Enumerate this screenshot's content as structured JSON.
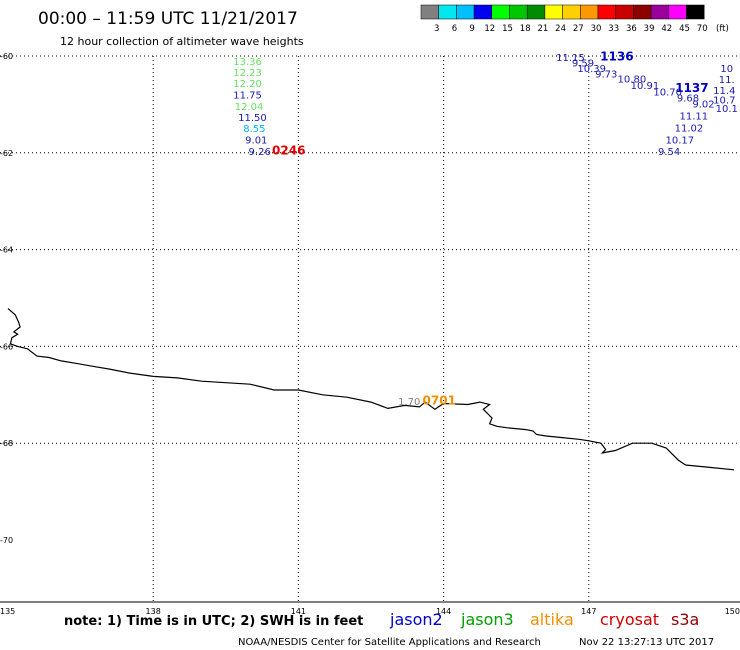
{
  "header": {
    "title": "00:00 – 11:59 UTC 11/21/2017",
    "subtitle": "12 hour collection of altimeter wave heights"
  },
  "scale": {
    "colors": [
      "#808080",
      "#00e8f0",
      "#00c0ff",
      "#0000f0",
      "#00ff00",
      "#00c800",
      "#008c00",
      "#ffff00",
      "#ffd000",
      "#ff9800",
      "#ff0000",
      "#c80000",
      "#8c0000",
      "#9c009c",
      "#ff00ff",
      "#000000"
    ],
    "labels": [
      "3",
      "6",
      "9",
      "12",
      "15",
      "18",
      "21",
      "24",
      "27",
      "30",
      "33",
      "36",
      "39",
      "42",
      "45",
      "70"
    ],
    "unit": "(ft)"
  },
  "axes": {
    "y_ticks": [
      {
        "value": -60,
        "label": "-60"
      },
      {
        "value": -62,
        "label": "-62"
      },
      {
        "value": -64,
        "label": "-64"
      },
      {
        "value": -66,
        "label": "-66"
      },
      {
        "value": -68,
        "label": "-68"
      },
      {
        "value": -70,
        "label": "-70"
      }
    ],
    "x_ticks": [
      {
        "value": 135,
        "label": "135"
      },
      {
        "value": 138,
        "label": "138"
      },
      {
        "value": 141,
        "label": "141"
      },
      {
        "value": 144,
        "label": "144"
      },
      {
        "value": 147,
        "label": "147"
      },
      {
        "value": 150,
        "label": "150"
      }
    ],
    "lat_range": [
      -70,
      -60
    ],
    "lon_range": [
      135,
      150
    ],
    "grid": true
  },
  "measurements": [
    {
      "lon": 139.95,
      "lat": -60.12,
      "value": "13.36",
      "color": "#66e066"
    },
    {
      "lon": 139.95,
      "lat": -60.35,
      "value": "12.23",
      "color": "#66e066"
    },
    {
      "lon": 139.95,
      "lat": -60.58,
      "value": "12.20",
      "color": "#66e066"
    },
    {
      "lon": 139.95,
      "lat": -60.82,
      "value": "11.75",
      "color": "#1a1ab0"
    },
    {
      "lon": 139.98,
      "lat": -61.05,
      "value": "12.04",
      "color": "#66e066"
    },
    {
      "lon": 140.05,
      "lat": -61.28,
      "value": "11.50",
      "color": "#1a1ab0"
    },
    {
      "lon": 140.09,
      "lat": -61.51,
      "value": "8.55",
      "color": "#00b0f0"
    },
    {
      "lon": 140.13,
      "lat": -61.75,
      "value": "9.01",
      "color": "#1a1ab0"
    },
    {
      "lon": 140.2,
      "lat": -61.98,
      "value": "9.26",
      "color": "#1a1ab0"
    },
    {
      "lon": 143.29,
      "lat": -67.15,
      "value": "1.70",
      "color": "#808080"
    },
    {
      "lon": 146.62,
      "lat": -60.04,
      "value": "11.15",
      "color": "#1a1ab0"
    },
    {
      "lon": 146.88,
      "lat": -60.15,
      "value": "9.59",
      "color": "#1a1ab0"
    },
    {
      "lon": 147.06,
      "lat": -60.27,
      "value": "10.39",
      "color": "#1a1ab0"
    },
    {
      "lon": 147.36,
      "lat": -60.38,
      "value": "9.73",
      "color": "#1a1ab0"
    },
    {
      "lon": 147.89,
      "lat": -60.49,
      "value": "10.80",
      "color": "#1a1ab0"
    },
    {
      "lon": 148.16,
      "lat": -60.62,
      "value": "10.91",
      "color": "#1a1ab0"
    },
    {
      "lon": 148.63,
      "lat": -60.75,
      "value": "10.70",
      "color": "#1a1ab0"
    },
    {
      "lon": 149.05,
      "lat": -60.88,
      "value": "9.68",
      "color": "#1a1ab0"
    },
    {
      "lon": 149.37,
      "lat": -61.0,
      "value": "9.02",
      "color": "#1a1ab0"
    },
    {
      "lon": 149.17,
      "lat": -61.25,
      "value": "11.11",
      "color": "#1a1ab0"
    },
    {
      "lon": 149.07,
      "lat": -61.5,
      "value": "11.02",
      "color": "#1a1ab0"
    },
    {
      "lon": 148.88,
      "lat": -61.75,
      "value": "10.17",
      "color": "#1a1ab0"
    },
    {
      "lon": 148.66,
      "lat": -61.98,
      "value": "9.54",
      "color": "#1a1ab0"
    },
    {
      "lon": 149.85,
      "lat": -60.27,
      "value": "10",
      "color": "#1a1ab0"
    },
    {
      "lon": 149.85,
      "lat": -60.5,
      "value": "11.",
      "color": "#1a1ab0"
    },
    {
      "lon": 149.8,
      "lat": -60.72,
      "value": "11.4",
      "color": "#1a1ab0"
    },
    {
      "lon": 149.8,
      "lat": -60.92,
      "value": "10.7",
      "color": "#1a1ab0"
    },
    {
      "lon": 149.85,
      "lat": -61.1,
      "value": "10.1",
      "color": "#1a1ab0"
    }
  ],
  "pass_times": [
    {
      "lon": 140.8,
      "lat": -61.95,
      "label": "0246",
      "color": "#e00000"
    },
    {
      "lon": 143.91,
      "lat": -67.12,
      "label": "0701",
      "color": "#f09000"
    },
    {
      "lon": 147.58,
      "lat": -60.01,
      "label": "1136",
      "color": "#0000c0"
    },
    {
      "lon": 149.13,
      "lat": -60.66,
      "label": "1137",
      "color": "#0000c0"
    }
  ],
  "coastline": [
    [
      135.0,
      -65.22
    ],
    [
      135.15,
      -65.35
    ],
    [
      135.22,
      -65.5
    ],
    [
      135.25,
      -65.6
    ],
    [
      135.12,
      -65.7
    ],
    [
      135.2,
      -65.75
    ],
    [
      135.08,
      -65.82
    ],
    [
      135.05,
      -65.95
    ],
    [
      135.2,
      -66.0
    ],
    [
      135.4,
      -66.05
    ],
    [
      135.6,
      -66.2
    ],
    [
      135.85,
      -66.23
    ],
    [
      136.1,
      -66.3
    ],
    [
      136.4,
      -66.35
    ],
    [
      136.8,
      -66.42
    ],
    [
      137.1,
      -66.47
    ],
    [
      137.5,
      -66.55
    ],
    [
      138.0,
      -66.62
    ],
    [
      138.5,
      -66.65
    ],
    [
      139.0,
      -66.72
    ],
    [
      139.5,
      -66.75
    ],
    [
      140.0,
      -66.78
    ],
    [
      140.5,
      -66.9
    ],
    [
      141.0,
      -66.9
    ],
    [
      141.5,
      -67.0
    ],
    [
      142.0,
      -67.05
    ],
    [
      142.5,
      -67.15
    ],
    [
      142.85,
      -67.28
    ],
    [
      143.2,
      -67.22
    ],
    [
      143.5,
      -67.25
    ],
    [
      143.62,
      -67.15
    ],
    [
      143.82,
      -67.3
    ],
    [
      144.0,
      -67.18
    ],
    [
      144.5,
      -67.2
    ],
    [
      144.75,
      -67.15
    ],
    [
      144.95,
      -67.2
    ],
    [
      144.82,
      -67.3
    ],
    [
      145.0,
      -67.48
    ],
    [
      144.95,
      -67.6
    ],
    [
      145.1,
      -67.65
    ],
    [
      145.3,
      -67.68
    ],
    [
      145.7,
      -67.72
    ],
    [
      145.85,
      -67.75
    ],
    [
      145.92,
      -67.82
    ],
    [
      146.1,
      -67.85
    ],
    [
      146.4,
      -67.88
    ],
    [
      146.8,
      -67.92
    ],
    [
      147.0,
      -67.95
    ],
    [
      147.25,
      -68.0
    ],
    [
      147.35,
      -68.13
    ],
    [
      147.28,
      -68.2
    ],
    [
      147.55,
      -68.15
    ],
    [
      147.9,
      -68.0
    ],
    [
      148.3,
      -68.0
    ],
    [
      148.6,
      -68.1
    ],
    [
      148.7,
      -68.2
    ],
    [
      148.85,
      -68.35
    ],
    [
      149.0,
      -68.45
    ],
    [
      149.5,
      -68.5
    ],
    [
      150.0,
      -68.55
    ]
  ],
  "footer": {
    "note": "note: 1) Time is in UTC; 2) SWH is in feet",
    "satellites": [
      {
        "name": "jason2",
        "color": "#0000d0"
      },
      {
        "name": "jason3",
        "color": "#00a000"
      },
      {
        "name": "altika",
        "color": "#f09000"
      },
      {
        "name": "cryosat",
        "color": "#d00000"
      },
      {
        "name": "s3a",
        "color": "#900000"
      }
    ],
    "credit": "NOAA/NESDIS Center for Satellite Applications and Research",
    "timestamp": "Nov 22 13:27:13 UTC 2017"
  }
}
